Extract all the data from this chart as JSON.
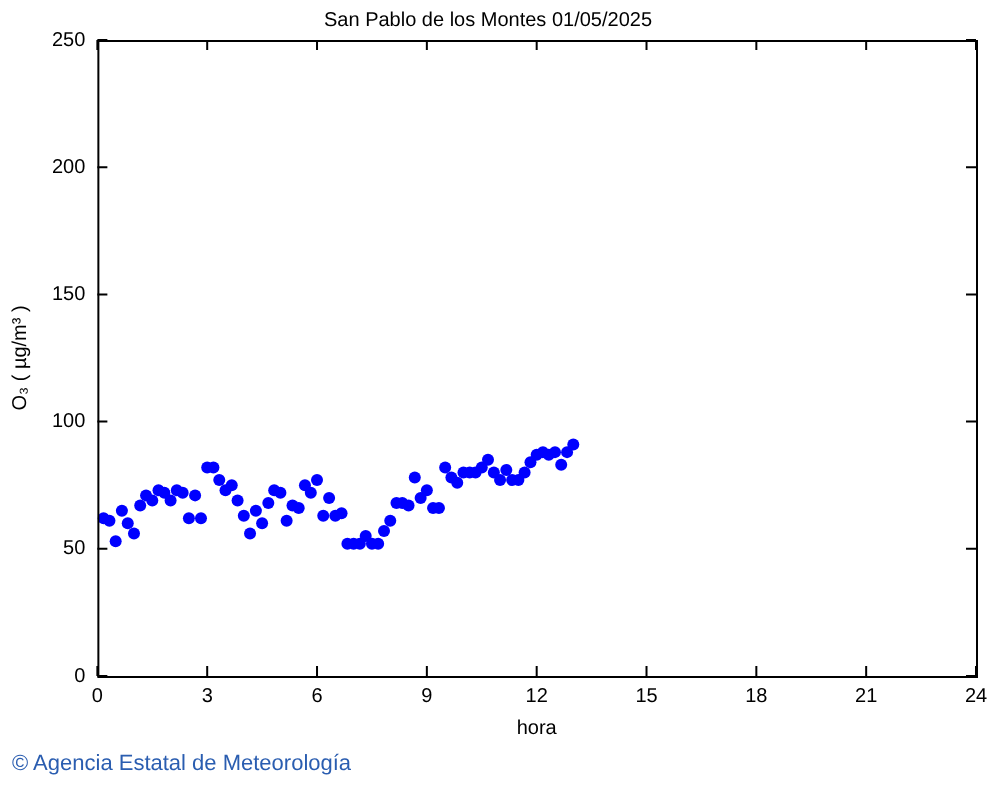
{
  "chart_data": {
    "type": "scatter",
    "title": "San Pablo de los Montes 01/05/2025",
    "xlabel": "hora",
    "ylabel": "O₃ ( µg/m³ )",
    "annotations": [
      "© Agencia Estatal de Meteorología"
    ],
    "x": [
      0.17,
      0.33,
      0.5,
      0.67,
      0.83,
      1,
      1.17,
      1.33,
      1.5,
      1.67,
      1.83,
      2,
      2.17,
      2.33,
      2.5,
      2.67,
      2.83,
      3,
      3.17,
      3.33,
      3.5,
      3.67,
      3.83,
      4,
      4.17,
      4.33,
      4.5,
      4.67,
      4.83,
      5,
      5.17,
      5.33,
      5.5,
      5.67,
      5.83,
      6,
      6.17,
      6.33,
      6.5,
      6.67,
      6.83,
      7,
      7.17,
      7.33,
      7.5,
      7.67,
      7.83,
      8,
      8.17,
      8.33,
      8.5,
      8.67,
      8.83,
      9,
      9.17,
      9.33,
      9.5,
      9.67,
      9.83,
      10,
      10.17,
      10.33,
      10.5,
      10.67,
      10.83,
      11,
      11.17,
      11.33,
      11.5,
      11.67,
      11.83,
      12,
      12.17,
      12.33,
      12.5,
      12.67,
      12.83,
      13
    ],
    "series": [
      {
        "color": "#0000ff",
        "values": [
          62,
          61,
          53,
          65,
          60,
          56,
          67,
          71,
          69,
          73,
          72,
          69,
          73,
          72,
          62,
          71,
          62,
          82,
          82,
          77,
          73,
          75,
          69,
          63,
          56,
          65,
          60,
          68,
          73,
          72,
          61,
          67,
          66,
          75,
          72,
          77,
          63,
          70,
          63,
          64,
          52,
          52,
          52,
          55,
          52,
          52,
          57,
          61,
          68,
          68,
          67,
          78,
          70,
          73,
          66,
          66,
          82,
          78,
          76,
          80,
          80,
          80,
          82,
          85,
          80,
          77,
          81,
          77,
          77,
          80,
          84,
          87,
          88,
          87,
          88,
          83,
          88,
          91
        ]
      }
    ],
    "xlim": [
      0,
      24
    ],
    "xticks": [
      0,
      3,
      6,
      9,
      12,
      15,
      18,
      21,
      24
    ],
    "ylim": [
      0,
      250
    ],
    "yticks": [
      0,
      50,
      100,
      150,
      200,
      250
    ],
    "grid": false,
    "legend": false,
    "marker": "circle"
  }
}
